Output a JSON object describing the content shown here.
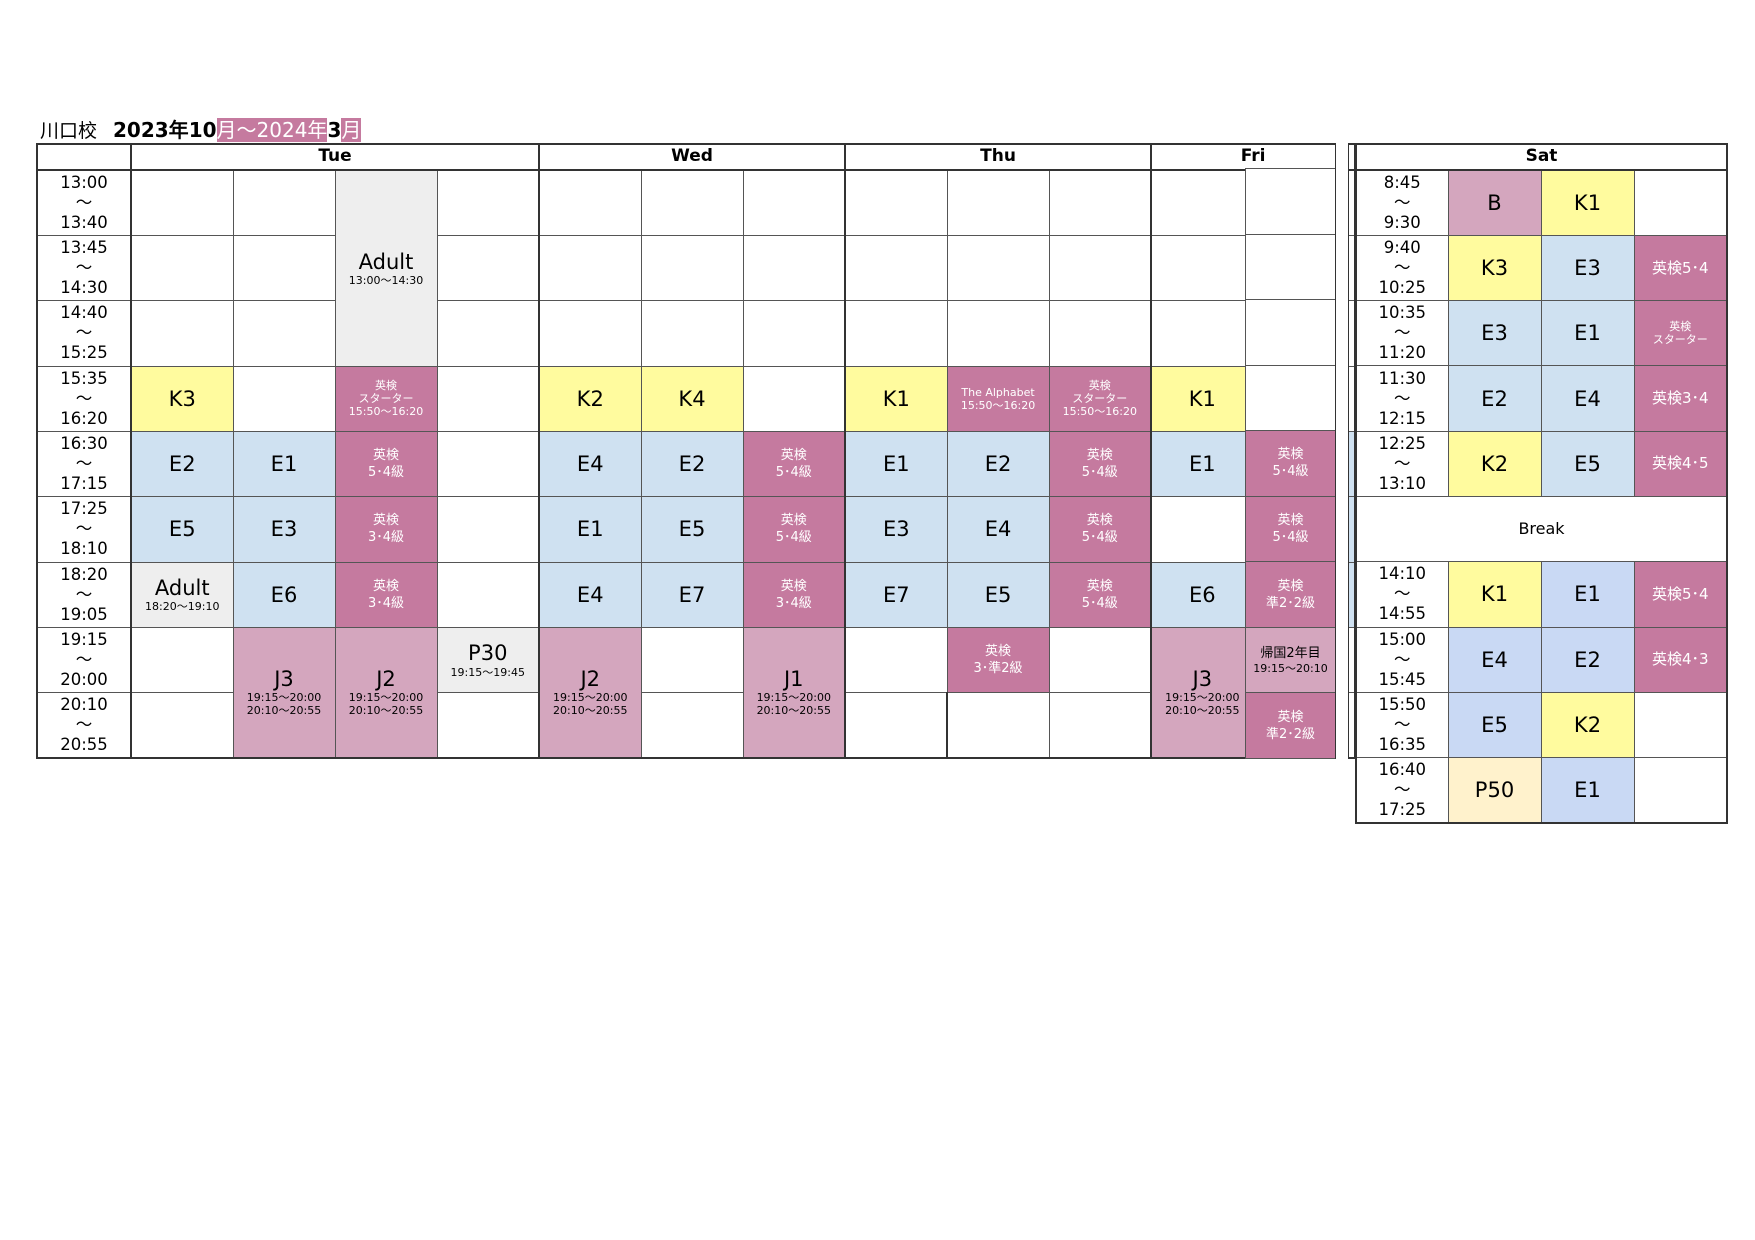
{
  "header": {
    "school": "川口校",
    "period_a": "2023年",
    "period_b": "10",
    "period_c": "月～2024年",
    "period_d": "3",
    "period_e": "月"
  },
  "days": {
    "tue": "Tue",
    "wed": "Wed",
    "thu": "Thu",
    "fri": "Fri",
    "sat": "Sat"
  },
  "weekday_times": [
    [
      "13:00",
      "～",
      "13:40"
    ],
    [
      "13:45",
      "～",
      "14:30"
    ],
    [
      "14:40",
      "～",
      "15:25"
    ],
    [
      "15:35",
      "～",
      "16:20"
    ],
    [
      "16:30",
      "～",
      "17:15"
    ],
    [
      "17:25",
      "～",
      "18:10"
    ],
    [
      "18:20",
      "～",
      "19:05"
    ],
    [
      "19:15",
      "～",
      "20:00"
    ],
    [
      "20:10",
      "～",
      "20:55"
    ]
  ],
  "sat_times": [
    [
      "8:45",
      "～",
      "9:30"
    ],
    [
      "9:40",
      "～",
      "10:25"
    ],
    [
      "10:35",
      "～",
      "11:20"
    ],
    [
      "11:30",
      "～",
      "12:15"
    ],
    [
      "12:25",
      "～",
      "13:10"
    ],
    [
      "14:10",
      "～",
      "14:55"
    ],
    [
      "15:00",
      "～",
      "15:45"
    ],
    [
      "15:50",
      "～",
      "16:35"
    ],
    [
      "16:40",
      "～",
      "17:25"
    ]
  ],
  "cells": {
    "adult1": "Adult",
    "adult1_t": "13:00～14:30",
    "k3": "K3",
    "eiken_starter_tue_a": "英検",
    "eiken_starter_tue_b": "スターター",
    "eiken_starter_tue_t": "15:50～16:20",
    "k2": "K2",
    "k4": "K4",
    "k1": "K1",
    "alphabet": "The Alphabet",
    "alphabet_t": "15:50～16:20",
    "e1": "E1",
    "e2": "E2",
    "e3": "E3",
    "e4": "E4",
    "e5": "E5",
    "e6": "E6",
    "e7": "E7",
    "eiken": "英検",
    "g54": "5･4級",
    "g34": "3･4級",
    "g3p2": "3･準2級",
    "gp22": "準2･2級",
    "adult2": "Adult",
    "adult2_t": "18:20～19:10",
    "j3": "J3",
    "j2": "J2",
    "j1": "J1",
    "jt1": "19:15～20:00",
    "jt2": "20:10～20:55",
    "p30": "P30",
    "p30_t": "19:15～19:45",
    "kikoku": "帰国2年目",
    "kikoku_t": "19:15～20:10",
    "b": "B",
    "sat_eiken54": "英検5･4",
    "sat_starter_a": "英検",
    "sat_starter_b": "スターター",
    "sat_eiken34": "英検3･4",
    "sat_eiken45": "英検4･5",
    "sat_eiken43": "英検4･3",
    "break": "Break",
    "p50": "P50"
  }
}
